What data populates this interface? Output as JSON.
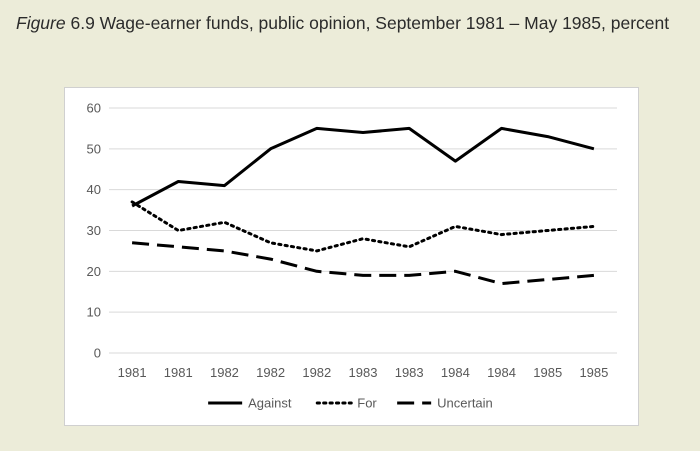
{
  "caption": {
    "figure_word": "Figure",
    "text": "6.9 Wage-earner funds, public opinion, September 1981 – May 1985, percent"
  },
  "chart_data": {
    "type": "line",
    "title": "Figure 6.9 Wage-earner funds, public opinion, September 1981 – May 1985, percent",
    "categories": [
      "1981",
      "1981",
      "1982",
      "1982",
      "1982",
      "1983",
      "1983",
      "1984",
      "1984",
      "1985",
      "1985"
    ],
    "ylim": [
      0,
      60
    ],
    "yticks": [
      0,
      10,
      20,
      30,
      40,
      50,
      60
    ],
    "grid": true,
    "legend_position": "bottom",
    "series": [
      {
        "name": "Against",
        "style": "solid",
        "color": "#000000",
        "values": [
          36,
          42,
          41,
          50,
          55,
          54,
          55,
          47,
          55,
          53,
          50
        ]
      },
      {
        "name": "For",
        "style": "dotted",
        "color": "#000000",
        "values": [
          37,
          30,
          32,
          27,
          25,
          28,
          26,
          31,
          29,
          30,
          31
        ]
      },
      {
        "name": "Uncertain",
        "style": "dashed",
        "color": "#000000",
        "values": [
          27,
          26,
          25,
          23,
          20,
          19,
          19,
          20,
          17,
          18,
          19
        ]
      }
    ]
  },
  "colors": {
    "page_background": "#ececd9",
    "plot_background": "#ffffff",
    "gridline": "#d9d9d9",
    "series_line": "#000000"
  }
}
